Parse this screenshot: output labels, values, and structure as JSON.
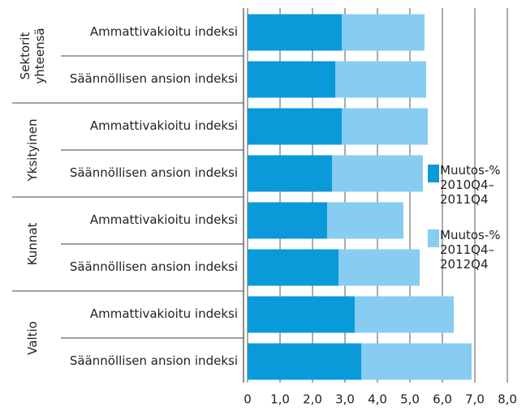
{
  "chart_data": {
    "type": "stacked-barh",
    "groups": [
      "Sektorit yhteensä",
      "Yksityinen",
      "Kunnat",
      "Valtio"
    ],
    "categories": [
      "Ammattivakioitu indeksi",
      "Säännöllisen ansion indeksi",
      "Ammattivakioitu indeksi",
      "Säännöllisen ansion indeksi",
      "Ammattivakioitu indeksi",
      "Säännöllisen ansion indeksi",
      "Ammattivakioitu indeksi",
      "Säännöllisen ansion indeksi"
    ],
    "series": [
      {
        "name": "Muutos-% 2010Q4–2011Q4",
        "color": "#0a9ad9",
        "values": [
          2.9,
          2.7,
          2.9,
          2.6,
          2.45,
          2.8,
          3.3,
          3.5
        ]
      },
      {
        "name": "Muutos-% 2011Q4–2012Q4",
        "color": "#86cdf1",
        "values": [
          2.55,
          2.8,
          2.65,
          2.8,
          2.35,
          2.5,
          3.05,
          3.4
        ]
      }
    ],
    "xlim": [
      0,
      8
    ],
    "xticks": [
      0,
      {
        "value": 1,
        "label": "1,0"
      },
      {
        "value": 2,
        "label": "2,0"
      },
      {
        "value": 3,
        "label": "3,0"
      },
      {
        "value": 4,
        "label": "4,0"
      },
      {
        "value": 5,
        "label": "5,0"
      },
      {
        "value": 6,
        "label": "6,0"
      },
      {
        "value": 7,
        "label": "7,0"
      },
      {
        "value": 8,
        "label": "8,0"
      }
    ],
    "grid": true,
    "legend": "right"
  }
}
